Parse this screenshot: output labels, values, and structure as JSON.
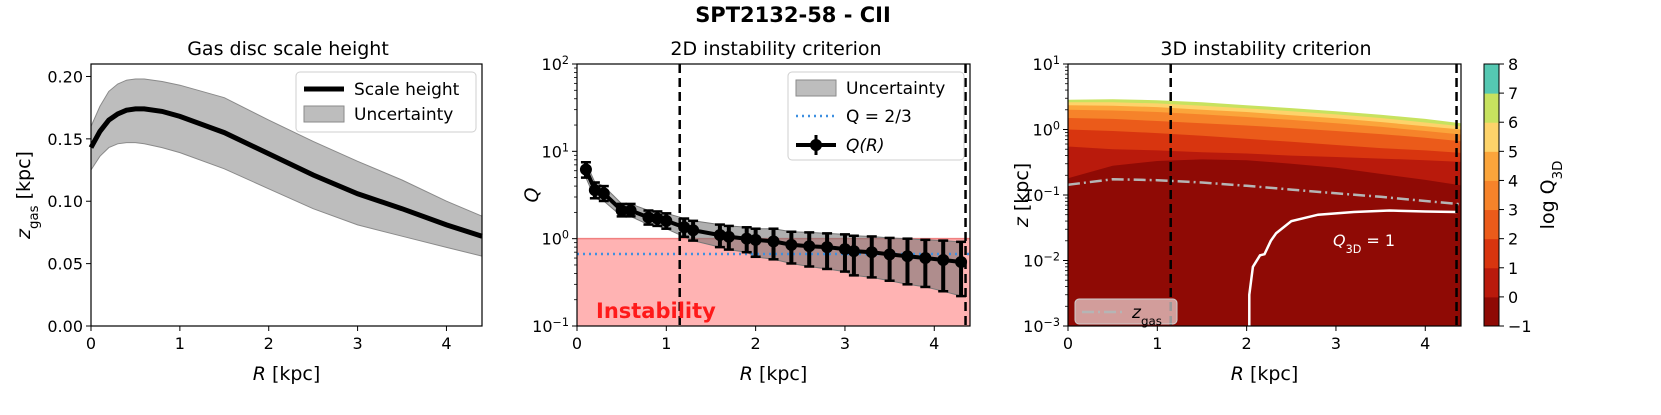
{
  "figure": {
    "title": "SPT2132-58 - CII"
  },
  "chart_data": [
    {
      "type": "line",
      "title": "Gas disc scale height",
      "xlabel": "R [kpc]",
      "ylabel": "z_gas [kpc]",
      "xlim": [
        0,
        4.4
      ],
      "ylim": [
        0.0,
        0.21
      ],
      "xticks": [
        "0",
        "1",
        "2",
        "3",
        "4"
      ],
      "yticks": [
        "0.00",
        "0.05",
        "0.10",
        "0.15",
        "0.20"
      ],
      "legend": {
        "position": "top-right",
        "entries": [
          "Scale height",
          "Uncertainty"
        ]
      },
      "series": [
        {
          "name": "Scale height",
          "x": [
            0.0,
            0.1,
            0.2,
            0.3,
            0.4,
            0.5,
            0.6,
            0.8,
            1.0,
            1.5,
            2.0,
            2.5,
            3.0,
            3.5,
            4.0,
            4.4
          ],
          "y": [
            0.143,
            0.156,
            0.165,
            0.17,
            0.173,
            0.174,
            0.174,
            0.172,
            0.168,
            0.155,
            0.138,
            0.121,
            0.106,
            0.094,
            0.081,
            0.072
          ]
        },
        {
          "name": "Uncertainty",
          "x": [
            0.0,
            0.1,
            0.2,
            0.3,
            0.4,
            0.5,
            0.6,
            0.8,
            1.0,
            1.5,
            2.0,
            2.5,
            3.0,
            3.5,
            4.0,
            4.4
          ],
          "lower": [
            0.125,
            0.136,
            0.143,
            0.146,
            0.147,
            0.147,
            0.146,
            0.143,
            0.139,
            0.126,
            0.11,
            0.094,
            0.081,
            0.072,
            0.063,
            0.056
          ],
          "upper": [
            0.16,
            0.176,
            0.188,
            0.194,
            0.197,
            0.198,
            0.198,
            0.196,
            0.193,
            0.183,
            0.165,
            0.148,
            0.132,
            0.117,
            0.1,
            0.088
          ]
        }
      ]
    },
    {
      "type": "line",
      "title": "2D instability criterion",
      "xlabel": "R [kpc]",
      "ylabel": "Q",
      "yscale": "log",
      "xlim": [
        0,
        4.4
      ],
      "ylim": [
        0.1,
        100
      ],
      "xticks": [
        "0",
        "1",
        "2",
        "3",
        "4"
      ],
      "yticks": [
        "10−1",
        "100",
        "101",
        "102"
      ],
      "legend": {
        "position": "top-right",
        "entries": [
          "Uncertainty",
          "Q = 2/3",
          "Q(R)"
        ]
      },
      "annotation": "Instability",
      "instability_region": [
        0.1,
        1.0
      ],
      "reference_line": {
        "label": "Q = 2/3",
        "y": 0.667
      },
      "vlines": [
        1.15,
        4.35
      ],
      "series": [
        {
          "name": "Q(R)",
          "x": [
            0.1,
            0.2,
            0.3,
            0.5,
            0.6,
            0.8,
            0.9,
            1.0,
            1.2,
            1.3,
            1.6,
            1.7,
            1.9,
            2.0,
            2.2,
            2.4,
            2.6,
            2.8,
            3.0,
            3.1,
            3.3,
            3.5,
            3.7,
            3.9,
            4.1,
            4.3
          ],
          "y": [
            6.2,
            3.6,
            3.3,
            2.1,
            2.1,
            1.75,
            1.7,
            1.6,
            1.35,
            1.25,
            1.1,
            1.05,
            1.0,
            0.97,
            0.93,
            0.85,
            0.82,
            0.8,
            0.76,
            0.72,
            0.7,
            0.66,
            0.63,
            0.6,
            0.57,
            0.54
          ],
          "err_low": [
            5.0,
            2.9,
            2.7,
            1.8,
            1.8,
            1.45,
            1.4,
            1.3,
            1.05,
            0.95,
            0.8,
            0.75,
            0.7,
            0.62,
            0.58,
            0.52,
            0.48,
            0.45,
            0.42,
            0.38,
            0.36,
            0.33,
            0.3,
            0.28,
            0.25,
            0.22
          ],
          "err_high": [
            7.5,
            4.4,
            4.0,
            2.5,
            2.5,
            2.1,
            2.05,
            1.95,
            1.7,
            1.6,
            1.45,
            1.4,
            1.35,
            1.3,
            1.3,
            1.2,
            1.18,
            1.15,
            1.12,
            1.08,
            1.06,
            1.02,
            1.0,
            0.97,
            0.95,
            0.92
          ]
        }
      ]
    },
    {
      "type": "heatmap",
      "title": "3D instability criterion",
      "xlabel": "R [kpc]",
      "ylabel": "z [kpc]",
      "yscale": "log",
      "xlim": [
        0,
        4.4
      ],
      "ylim": [
        0.001,
        10
      ],
      "xticks": [
        "0",
        "1",
        "2",
        "3",
        "4"
      ],
      "yticks": [
        "10−3",
        "10−2",
        "10−1",
        "100",
        "101"
      ],
      "colorbar": {
        "label": "log Q3D",
        "ticks": [
          "−1",
          "0",
          "1",
          "2",
          "3",
          "4",
          "5",
          "6",
          "7",
          "8"
        ]
      },
      "levels": [
        -1,
        0,
        1,
        2,
        3,
        4,
        5,
        6,
        7,
        8
      ],
      "level_colors": [
        "#8f0a05",
        "#b91a0c",
        "#d8350f",
        "#eb5b1a",
        "#f6832a",
        "#fba53b",
        "#fdd36a",
        "#c7e25f",
        "#55c8b2",
        "#2b9ce0"
      ],
      "contour_label": "Q3D = 1",
      "zgas_label": "zgas",
      "legend": {
        "position": "bottom-left",
        "entries": [
          "zgas"
        ]
      },
      "vlines": [
        1.15,
        4.35
      ],
      "zgas_curve": {
        "x": [
          0.0,
          0.5,
          1.0,
          1.5,
          2.0,
          2.5,
          3.0,
          3.5,
          4.0,
          4.4
        ],
        "y": [
          0.143,
          0.174,
          0.168,
          0.155,
          0.138,
          0.121,
          0.106,
          0.094,
          0.081,
          0.072
        ]
      },
      "q1_contour": {
        "x": [
          2.03,
          2.03,
          2.07,
          2.15,
          2.2,
          2.27,
          2.33,
          2.5,
          2.8,
          3.2,
          3.6,
          4.0,
          4.35
        ],
        "y": [
          0.001,
          0.003,
          0.008,
          0.012,
          0.0125,
          0.02,
          0.026,
          0.04,
          0.05,
          0.055,
          0.058,
          0.056,
          0.055
        ]
      },
      "band_tops": [
        {
          "level": 1,
          "x": [
            0.0,
            0.5,
            1.0,
            1.5,
            2.0,
            2.5,
            3.0,
            3.5,
            4.0,
            4.4
          ],
          "y": [
            0.18,
            0.28,
            0.33,
            0.35,
            0.34,
            0.3,
            0.26,
            0.21,
            0.17,
            0.14
          ]
        },
        {
          "level": 2,
          "x": [
            0.0,
            0.5,
            1.0,
            1.5,
            2.0,
            2.5,
            3.0,
            3.5,
            4.0,
            4.4
          ],
          "y": [
            0.55,
            0.5,
            0.48,
            0.45,
            0.43,
            0.4,
            0.38,
            0.36,
            0.34,
            0.32
          ]
        },
        {
          "level": 3,
          "x": [
            0.0,
            0.5,
            1.0,
            1.5,
            2.0,
            2.5,
            3.0,
            3.5,
            4.0,
            4.4
          ],
          "y": [
            1.0,
            0.95,
            0.88,
            0.8,
            0.72,
            0.65,
            0.58,
            0.52,
            0.48,
            0.44
          ]
        },
        {
          "level": 4,
          "x": [
            0.0,
            0.5,
            1.0,
            1.5,
            2.0,
            2.5,
            3.0,
            3.5,
            4.0,
            4.4
          ],
          "y": [
            1.5,
            1.45,
            1.35,
            1.25,
            1.15,
            1.05,
            0.95,
            0.85,
            0.75,
            0.66
          ]
        },
        {
          "level": 5,
          "x": [
            0.0,
            0.5,
            1.0,
            1.5,
            2.0,
            2.5,
            3.0,
            3.5,
            4.0,
            4.4
          ],
          "y": [
            2.0,
            1.95,
            1.85,
            1.7,
            1.55,
            1.4,
            1.25,
            1.1,
            0.95,
            0.84
          ]
        },
        {
          "level": 6,
          "x": [
            0.0,
            0.5,
            1.0,
            1.5,
            2.0,
            2.5,
            3.0,
            3.5,
            4.0,
            4.4
          ],
          "y": [
            2.35,
            2.3,
            2.2,
            2.0,
            1.85,
            1.65,
            1.48,
            1.3,
            1.12,
            1.0
          ]
        },
        {
          "level": 7,
          "x": [
            0.0,
            0.5,
            1.0,
            1.5,
            2.0,
            2.5,
            3.0,
            3.5,
            4.0,
            4.4
          ],
          "y": [
            2.6,
            2.6,
            2.5,
            2.3,
            2.1,
            1.9,
            1.7,
            1.5,
            1.28,
            1.12
          ]
        },
        {
          "level": 8,
          "x": [
            0.0,
            0.5,
            1.0,
            1.5,
            2.0,
            2.5,
            3.0,
            3.5,
            4.0,
            4.4
          ],
          "y": [
            2.85,
            2.9,
            2.8,
            2.6,
            2.35,
            2.12,
            1.9,
            1.68,
            1.45,
            1.25
          ]
        }
      ]
    }
  ]
}
